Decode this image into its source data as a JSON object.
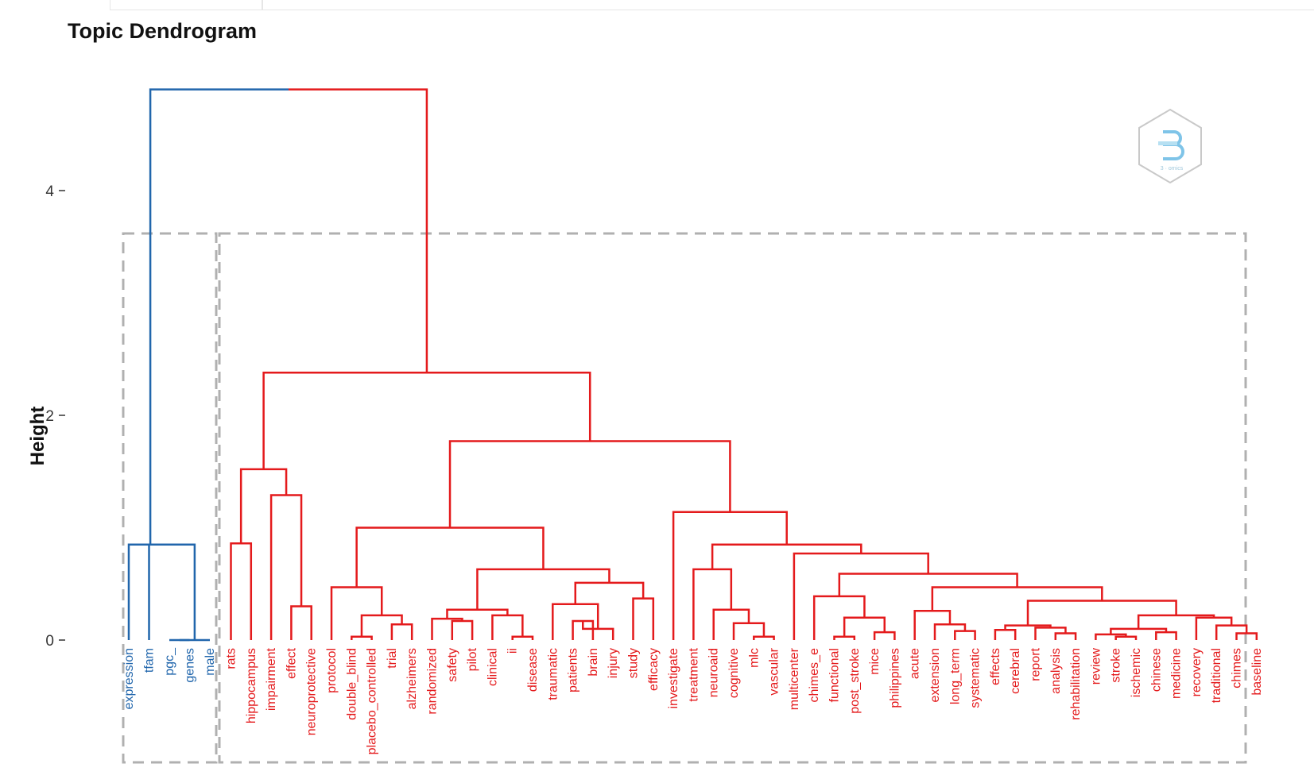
{
  "chart_data": {
    "type": "dendrogram",
    "title": "Topic Dendrogram",
    "ylabel": "Height",
    "ylim": [
      0,
      5
    ],
    "yticks": [
      0,
      2,
      4
    ],
    "colors": {
      "cluster_blue": "#2166ac",
      "cluster_red": "#e41a1c",
      "box": "#b0b0b0"
    },
    "leaves": [
      {
        "label": "expression",
        "cluster": "blue"
      },
      {
        "label": "tfam",
        "cluster": "blue"
      },
      {
        "label": "pgc_",
        "cluster": "blue"
      },
      {
        "label": "genes",
        "cluster": "blue"
      },
      {
        "label": "male",
        "cluster": "blue"
      },
      {
        "label": "rats",
        "cluster": "red"
      },
      {
        "label": "hippocampus",
        "cluster": "red"
      },
      {
        "label": "impairment",
        "cluster": "red"
      },
      {
        "label": "effect",
        "cluster": "red"
      },
      {
        "label": "neuroprotective",
        "cluster": "red"
      },
      {
        "label": "protocol",
        "cluster": "red"
      },
      {
        "label": "double_blind",
        "cluster": "red"
      },
      {
        "label": "placebo_controlled",
        "cluster": "red"
      },
      {
        "label": "trial",
        "cluster": "red"
      },
      {
        "label": "alzheimers",
        "cluster": "red"
      },
      {
        "label": "randomized",
        "cluster": "red"
      },
      {
        "label": "safety",
        "cluster": "red"
      },
      {
        "label": "pilot",
        "cluster": "red"
      },
      {
        "label": "clinical",
        "cluster": "red"
      },
      {
        "label": "ii",
        "cluster": "red"
      },
      {
        "label": "disease",
        "cluster": "red"
      },
      {
        "label": "traumatic",
        "cluster": "red"
      },
      {
        "label": "patients",
        "cluster": "red"
      },
      {
        "label": "brain",
        "cluster": "red"
      },
      {
        "label": "injury",
        "cluster": "red"
      },
      {
        "label": "study",
        "cluster": "red"
      },
      {
        "label": "efficacy",
        "cluster": "red"
      },
      {
        "label": "investigate",
        "cluster": "red"
      },
      {
        "label": "treatment",
        "cluster": "red"
      },
      {
        "label": "neuroaid",
        "cluster": "red"
      },
      {
        "label": "cognitive",
        "cluster": "red"
      },
      {
        "label": "mlc",
        "cluster": "red"
      },
      {
        "label": "vascular",
        "cluster": "red"
      },
      {
        "label": "multicenter",
        "cluster": "red"
      },
      {
        "label": "chimes_e",
        "cluster": "red"
      },
      {
        "label": "functional",
        "cluster": "red"
      },
      {
        "label": "post_stroke",
        "cluster": "red"
      },
      {
        "label": "mice",
        "cluster": "red"
      },
      {
        "label": "philippines",
        "cluster": "red"
      },
      {
        "label": "acute",
        "cluster": "red"
      },
      {
        "label": "extension",
        "cluster": "red"
      },
      {
        "label": "long_term",
        "cluster": "red"
      },
      {
        "label": "systematic",
        "cluster": "red"
      },
      {
        "label": "effects",
        "cluster": "red"
      },
      {
        "label": "cerebral",
        "cluster": "red"
      },
      {
        "label": "report",
        "cluster": "red"
      },
      {
        "label": "analysis",
        "cluster": "red"
      },
      {
        "label": "rehabilitation",
        "cluster": "red"
      },
      {
        "label": "review",
        "cluster": "red"
      },
      {
        "label": "stroke",
        "cluster": "red"
      },
      {
        "label": "ischemic",
        "cluster": "red"
      },
      {
        "label": "chinese",
        "cluster": "red"
      },
      {
        "label": "medicine",
        "cluster": "red"
      },
      {
        "label": "recovery",
        "cluster": "red"
      },
      {
        "label": "traditional",
        "cluster": "red"
      },
      {
        "label": "chimes",
        "cluster": "red"
      },
      {
        "label": "baseline",
        "cluster": "red"
      }
    ],
    "merges": [
      {
        "children": [
          "L:2",
          "L:3"
        ],
        "height": 0.0,
        "cluster": "blue"
      },
      {
        "children": [
          "M:0",
          "L:4"
        ],
        "height": 0.0,
        "cluster": "blue"
      },
      {
        "children": [
          "L:1",
          "M:1"
        ],
        "height": 0.85,
        "cluster": "blue"
      },
      {
        "children": [
          "L:0",
          "M:2"
        ],
        "height": 0.85,
        "cluster": "blue"
      },
      {
        "children": [
          "L:5",
          "L:6"
        ],
        "height": 0.86,
        "cluster": "red"
      },
      {
        "children": [
          "L:8",
          "L:9"
        ],
        "height": 0.3,
        "cluster": "red"
      },
      {
        "children": [
          "L:7",
          "M:5"
        ],
        "height": 1.29,
        "cluster": "red"
      },
      {
        "children": [
          "M:4",
          "M:6"
        ],
        "height": 1.52,
        "cluster": "red"
      },
      {
        "children": [
          "L:11",
          "L:12"
        ],
        "height": 0.03,
        "cluster": "red"
      },
      {
        "children": [
          "L:13",
          "L:14"
        ],
        "height": 0.14,
        "cluster": "red"
      },
      {
        "children": [
          "M:8",
          "M:9"
        ],
        "height": 0.22,
        "cluster": "red"
      },
      {
        "children": [
          "L:10",
          "M:10"
        ],
        "height": 0.47,
        "cluster": "red"
      },
      {
        "children": [
          "L:16",
          "L:17"
        ],
        "height": 0.17,
        "cluster": "red"
      },
      {
        "children": [
          "L:15",
          "M:12"
        ],
        "height": 0.19,
        "cluster": "red"
      },
      {
        "children": [
          "L:19",
          "L:20"
        ],
        "height": 0.03,
        "cluster": "red"
      },
      {
        "children": [
          "L:18",
          "M:14"
        ],
        "height": 0.22,
        "cluster": "red"
      },
      {
        "children": [
          "M:13",
          "M:15"
        ],
        "height": 0.27,
        "cluster": "red"
      },
      {
        "children": [
          "L:22",
          "L:23"
        ],
        "height": 0.17,
        "cluster": "red"
      },
      {
        "children": [
          "M:17",
          "L:24"
        ],
        "height": 0.1,
        "cluster": "red"
      },
      {
        "children": [
          "L:21",
          "M:18"
        ],
        "height": 0.32,
        "cluster": "red"
      },
      {
        "children": [
          "L:25",
          "L:26"
        ],
        "height": 0.37,
        "cluster": "red"
      },
      {
        "children": [
          "M:19",
          "M:20"
        ],
        "height": 0.51,
        "cluster": "red"
      },
      {
        "children": [
          "M:16",
          "M:21"
        ],
        "height": 0.63,
        "cluster": "red"
      },
      {
        "children": [
          "M:11",
          "M:22"
        ],
        "height": 1.0,
        "cluster": "red"
      },
      {
        "children": [
          "L:31",
          "L:32"
        ],
        "height": 0.03,
        "cluster": "red"
      },
      {
        "children": [
          "L:30",
          "M:24"
        ],
        "height": 0.15,
        "cluster": "red"
      },
      {
        "children": [
          "L:29",
          "M:25"
        ],
        "height": 0.27,
        "cluster": "red"
      },
      {
        "children": [
          "L:28",
          "M:26"
        ],
        "height": 0.63,
        "cluster": "red"
      },
      {
        "children": [
          "L:35",
          "L:36"
        ],
        "height": 0.03,
        "cluster": "red"
      },
      {
        "children": [
          "L:37",
          "L:38"
        ],
        "height": 0.07,
        "cluster": "red"
      },
      {
        "children": [
          "M:28",
          "M:29"
        ],
        "height": 0.2,
        "cluster": "red"
      },
      {
        "children": [
          "L:34",
          "M:30"
        ],
        "height": 0.39,
        "cluster": "red"
      },
      {
        "children": [
          "L:41",
          "L:42"
        ],
        "height": 0.08,
        "cluster": "red"
      },
      {
        "children": [
          "L:40",
          "M:32"
        ],
        "height": 0.14,
        "cluster": "red"
      },
      {
        "children": [
          "L:39",
          "M:33"
        ],
        "height": 0.26,
        "cluster": "red"
      },
      {
        "children": [
          "L:43",
          "L:44"
        ],
        "height": 0.09,
        "cluster": "red"
      },
      {
        "children": [
          "L:46",
          "L:47"
        ],
        "height": 0.06,
        "cluster": "red"
      },
      {
        "children": [
          "L:45",
          "M:36"
        ],
        "height": 0.11,
        "cluster": "red"
      },
      {
        "children": [
          "M:35",
          "M:37"
        ],
        "height": 0.13,
        "cluster": "red"
      },
      {
        "children": [
          "L:49",
          "L:50"
        ],
        "height": 0.03,
        "cluster": "red"
      },
      {
        "children": [
          "L:48",
          "M:39"
        ],
        "height": 0.05,
        "cluster": "red"
      },
      {
        "children": [
          "L:51",
          "L:52"
        ],
        "height": 0.07,
        "cluster": "red"
      },
      {
        "children": [
          "M:40",
          "M:41"
        ],
        "height": 0.1,
        "cluster": "red"
      },
      {
        "children": [
          "L:55",
          "L:56"
        ],
        "height": 0.06,
        "cluster": "red"
      },
      {
        "children": [
          "L:54",
          "M:43"
        ],
        "height": 0.13,
        "cluster": "red"
      },
      {
        "children": [
          "L:53",
          "M:44"
        ],
        "height": 0.2,
        "cluster": "red"
      },
      {
        "children": [
          "M:42",
          "M:45"
        ],
        "height": 0.22,
        "cluster": "red"
      },
      {
        "children": [
          "M:38",
          "M:46"
        ],
        "height": 0.35,
        "cluster": "red"
      },
      {
        "children": [
          "M:34",
          "M:47"
        ],
        "height": 0.47,
        "cluster": "red"
      },
      {
        "children": [
          "M:31",
          "M:48"
        ],
        "height": 0.59,
        "cluster": "red"
      },
      {
        "children": [
          "L:33",
          "M:49"
        ],
        "height": 0.77,
        "cluster": "red"
      },
      {
        "children": [
          "M:27",
          "M:50"
        ],
        "height": 0.85,
        "cluster": "red"
      },
      {
        "children": [
          "L:27",
          "M:51"
        ],
        "height": 1.14,
        "cluster": "red"
      },
      {
        "children": [
          "M:23",
          "M:52"
        ],
        "height": 1.77,
        "cluster": "red"
      },
      {
        "children": [
          "M:7",
          "M:53"
        ],
        "height": 2.38,
        "cluster": "red"
      },
      {
        "children": [
          "M:3",
          "M:54"
        ],
        "height": 4.9,
        "cluster": "root"
      }
    ],
    "cut_boxes": [
      {
        "leaves": [
          0,
          4
        ]
      },
      {
        "leaves": [
          5,
          56
        ]
      }
    ]
  }
}
